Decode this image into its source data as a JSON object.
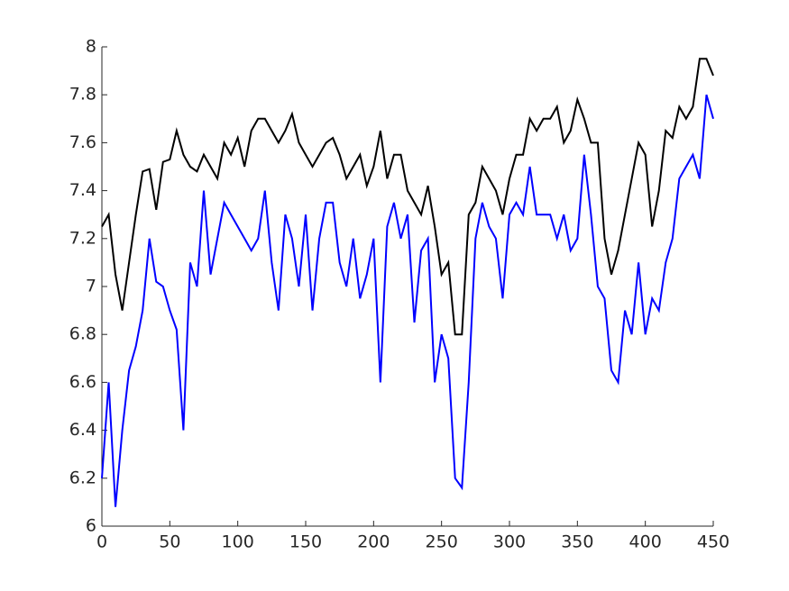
{
  "chart_data": {
    "type": "line",
    "x": [
      0,
      5,
      10,
      15,
      20,
      25,
      30,
      35,
      40,
      45,
      50,
      55,
      60,
      65,
      70,
      75,
      80,
      85,
      90,
      95,
      100,
      105,
      110,
      115,
      120,
      125,
      130,
      135,
      140,
      145,
      150,
      155,
      160,
      165,
      170,
      175,
      180,
      185,
      190,
      195,
      200,
      205,
      210,
      215,
      220,
      225,
      230,
      235,
      240,
      245,
      250,
      255,
      260,
      265,
      270,
      275,
      280,
      285,
      290,
      295,
      300,
      305,
      310,
      315,
      320,
      325,
      330,
      335,
      340,
      345,
      350,
      355,
      360,
      365,
      370,
      375,
      380,
      385,
      390,
      395,
      400,
      405,
      410,
      415,
      420,
      425,
      430,
      435,
      440,
      445,
      450
    ],
    "series": [
      {
        "color": "#000000",
        "values": [
          7.25,
          7.3,
          7.05,
          6.9,
          7.1,
          7.3,
          7.48,
          7.49,
          7.32,
          7.52,
          7.53,
          7.65,
          7.55,
          7.5,
          7.48,
          7.55,
          7.5,
          7.45,
          7.6,
          7.55,
          7.62,
          7.5,
          7.65,
          7.7,
          7.7,
          7.65,
          7.6,
          7.65,
          7.72,
          7.6,
          7.55,
          7.5,
          7.55,
          7.6,
          7.62,
          7.55,
          7.45,
          7.5,
          7.55,
          7.42,
          7.5,
          7.65,
          7.45,
          7.55,
          7.55,
          7.4,
          7.35,
          7.3,
          7.42,
          7.25,
          7.05,
          7.1,
          6.8,
          6.8,
          7.3,
          7.35,
          7.5,
          7.45,
          7.4,
          7.3,
          7.45,
          7.55,
          7.55,
          7.7,
          7.65,
          7.7,
          7.7,
          7.75,
          7.6,
          7.65,
          7.78,
          7.7,
          7.6,
          7.6,
          7.2,
          7.05,
          7.15,
          7.3,
          7.45,
          7.6,
          7.55,
          7.25,
          7.4,
          7.65,
          7.62,
          7.75,
          7.7,
          7.75,
          7.95,
          7.95,
          7.88
        ]
      },
      {
        "color": "#0000ff",
        "values": [
          6.2,
          6.6,
          6.08,
          6.4,
          6.65,
          6.75,
          6.9,
          7.2,
          7.02,
          7.0,
          6.9,
          6.82,
          6.4,
          7.1,
          7.0,
          7.4,
          7.05,
          7.2,
          7.35,
          7.3,
          7.25,
          7.2,
          7.15,
          7.2,
          7.4,
          7.1,
          6.9,
          7.3,
          7.2,
          7.0,
          7.3,
          6.9,
          7.2,
          7.35,
          7.35,
          7.1,
          7.0,
          7.2,
          6.95,
          7.05,
          7.2,
          6.6,
          7.25,
          7.35,
          7.2,
          7.3,
          6.85,
          7.15,
          7.2,
          6.6,
          6.8,
          6.7,
          6.2,
          6.16,
          6.6,
          7.2,
          7.35,
          7.25,
          7.2,
          6.95,
          7.3,
          7.35,
          7.3,
          7.5,
          7.3,
          7.3,
          7.3,
          7.2,
          7.3,
          7.15,
          7.2,
          7.55,
          7.3,
          7.0,
          6.95,
          6.65,
          6.6,
          6.9,
          6.8,
          7.1,
          6.8,
          6.95,
          6.9,
          7.1,
          7.2,
          7.45,
          7.5,
          7.55,
          7.45,
          7.8,
          7.7
        ]
      }
    ],
    "xlim": [
      0,
      450
    ],
    "xticks": [
      0,
      50,
      100,
      150,
      200,
      250,
      300,
      350,
      400,
      450
    ],
    "ylim": [
      6,
      8
    ],
    "yticks": [
      6,
      6.2,
      6.4,
      6.6,
      6.8,
      7,
      7.2,
      7.4,
      7.6,
      7.8,
      8
    ]
  }
}
